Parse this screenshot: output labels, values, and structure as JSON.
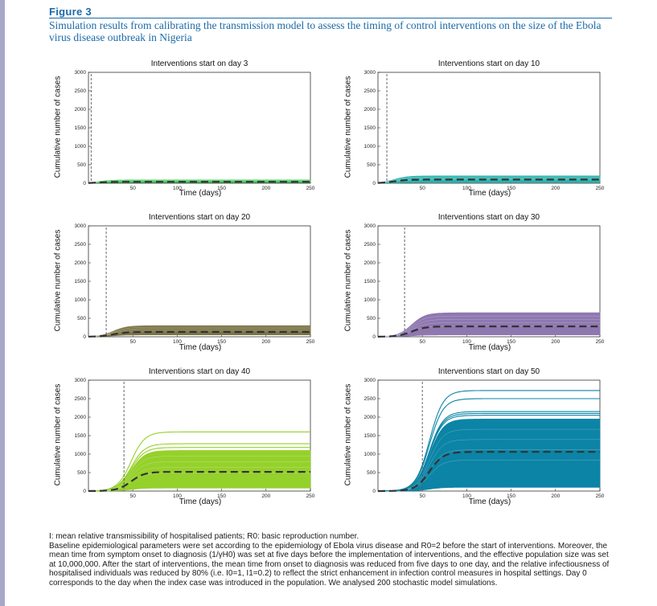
{
  "figure": {
    "label": "Figure 3",
    "caption": "Simulation results from calibrating the transmission model to assess the timing of control interventions on the size of the Ebola virus disease outbreak in Nigeria"
  },
  "colors": {
    "accent": "#1b6aa8",
    "day3": "#1fc33b",
    "day10": "#2bb3ae",
    "day20": "#7b7446",
    "day30": "#8f77b0",
    "day40": "#95d12b",
    "day50": "#0c84a6",
    "mean_line": "#333333"
  },
  "chart_data": [
    {
      "type": "area",
      "title": "Interventions start on day 3",
      "xlabel": "Time (days)",
      "ylabel": "Cumulative number of cases",
      "xlim": [
        0,
        250
      ],
      "ylim": [
        0,
        3000
      ],
      "xticks": [
        "50",
        "100",
        "150",
        "200",
        "250"
      ],
      "yticks": [
        "0",
        "500",
        "1000",
        "1500",
        "2000",
        "2500",
        "3000"
      ],
      "intervention_day": 3,
      "band": {
        "upper": 90,
        "lower": 20
      },
      "mean_final": 40,
      "series_color": "#1fc33b"
    },
    {
      "type": "area",
      "title": "Interventions start on day 10",
      "xlabel": "Time (days)",
      "ylabel": "Cumulative number of cases",
      "xlim": [
        0,
        250
      ],
      "ylim": [
        0,
        3000
      ],
      "xticks": [
        "50",
        "100",
        "150",
        "200",
        "250"
      ],
      "yticks": [
        "0",
        "500",
        "1000",
        "1500",
        "2000",
        "2500",
        "3000"
      ],
      "intervention_day": 10,
      "band": {
        "upper": 200,
        "lower": 20
      },
      "mean_final": 100,
      "series_color": "#2bb3ae"
    },
    {
      "type": "area",
      "title": "Interventions start on day 20",
      "xlabel": "Time (days)",
      "ylabel": "Cumulative number of cases",
      "xlim": [
        0,
        250
      ],
      "ylim": [
        0,
        3000
      ],
      "xticks": [
        "50",
        "100",
        "150",
        "200",
        "250"
      ],
      "yticks": [
        "0",
        "500",
        "1000",
        "1500",
        "2000",
        "2500",
        "3000"
      ],
      "intervention_day": 20,
      "band": {
        "upper": 300,
        "lower": 50
      },
      "mean_final": 130,
      "series_color": "#7b7446"
    },
    {
      "type": "area",
      "title": "Interventions start on day 30",
      "xlabel": "Time (days)",
      "ylabel": "Cumulative number of cases",
      "xlim": [
        0,
        250
      ],
      "ylim": [
        0,
        3000
      ],
      "xticks": [
        "50",
        "100",
        "150",
        "200",
        "250"
      ],
      "yticks": [
        "0",
        "500",
        "1000",
        "1500",
        "2000",
        "2500",
        "3000"
      ],
      "intervention_day": 30,
      "band": {
        "upper": 650,
        "lower": 50
      },
      "mean_final": 280,
      "series_color": "#8f77b0"
    },
    {
      "type": "area",
      "title": "Interventions start on day 40",
      "xlabel": "Time (days)",
      "ylabel": "Cumulative number of cases",
      "xlim": [
        0,
        250
      ],
      "ylim": [
        0,
        3000
      ],
      "xticks": [
        "50",
        "100",
        "150",
        "200",
        "250"
      ],
      "yticks": [
        "0",
        "500",
        "1000",
        "1500",
        "2000",
        "2500",
        "3000"
      ],
      "intervention_day": 40,
      "band": {
        "upper": 1100,
        "lower": 80
      },
      "outliers": [
        1600,
        1280,
        1180
      ],
      "mean_final": 520,
      "series_color": "#95d12b"
    },
    {
      "type": "area",
      "title": "Interventions start on day 50",
      "xlabel": "Time (days)",
      "ylabel": "Cumulative number of cases",
      "xlim": [
        0,
        250
      ],
      "ylim": [
        0,
        3000
      ],
      "xticks": [
        "50",
        "100",
        "150",
        "200",
        "250"
      ],
      "yticks": [
        "0",
        "500",
        "1000",
        "1500",
        "2000",
        "2500",
        "3000"
      ],
      "intervention_day": 50,
      "band": {
        "upper": 1950,
        "lower": 100
      },
      "outliers": [
        2720,
        2500,
        2150,
        2100,
        2050
      ],
      "mean_final": 1060,
      "series_color": "#0c84a6"
    }
  ],
  "notes": [
    "I: mean relative transmissibility of hospitalised patients; R0: basic reproduction number.",
    "Baseline epidemiological parameters were set according to the epidemiology of Ebola virus disease and R0=2 before the start of interventions. Moreover, the mean time from symptom onset to diagnosis (1/γH0) was set at five days before the implementation of interventions, and the effective population size was set at 10,000,000. After the start of interventions, the mean time from onset to diagnosis was reduced from five days to one day, and the relative infectiousness of hospitalised individuals was reduced by 80% (i.e. I0=1, I1=0.2) to reflect the strict enhancement in infection control measures in hospital settings. Day 0 corresponds to the day when the index case was introduced in the population. We analysed 200 stochastic model simulations."
  ]
}
